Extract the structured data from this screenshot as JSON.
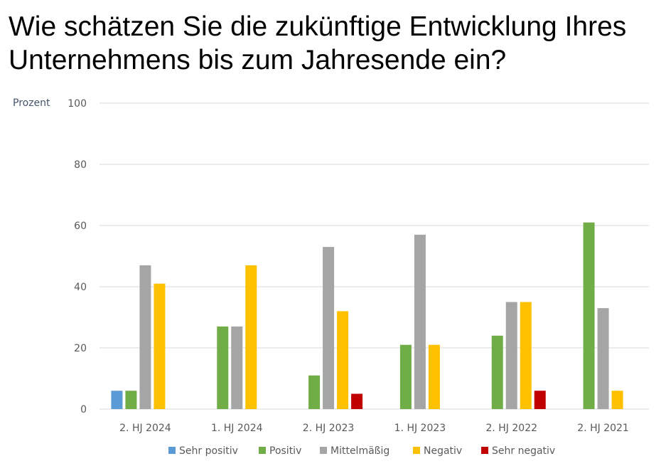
{
  "chart_data": {
    "type": "bar",
    "title": "Wie schätzen Sie die zukünftige Entwicklung Ihres Unternehmens bis zum Jahresende ein?",
    "ylabel": "Prozent",
    "xlabel": "",
    "ylim": [
      0,
      100
    ],
    "yticks": [
      0,
      20,
      40,
      60,
      80,
      100
    ],
    "grid": true,
    "legend": "bottom",
    "categories": [
      "2. HJ 2024",
      "1. HJ 2024",
      "2. HJ 2023",
      "1. HJ 2023",
      "2. HJ 2022",
      "2. HJ 2021"
    ],
    "series": [
      {
        "name": "Sehr positiv",
        "color": "#5b9bd5",
        "values": [
          6,
          0,
          0,
          0,
          0,
          0
        ]
      },
      {
        "name": "Positiv",
        "color": "#70ad47",
        "values": [
          6,
          27,
          11,
          21,
          24,
          61
        ]
      },
      {
        "name": "Mittelmäßig",
        "color": "#a5a5a5",
        "values": [
          47,
          27,
          53,
          57,
          35,
          33
        ]
      },
      {
        "name": "Negativ",
        "color": "#ffc000",
        "values": [
          41,
          47,
          32,
          21,
          35,
          6
        ]
      },
      {
        "name": "Sehr negativ",
        "color": "#c00000",
        "values": [
          0,
          0,
          5,
          0,
          6,
          0
        ]
      }
    ]
  }
}
